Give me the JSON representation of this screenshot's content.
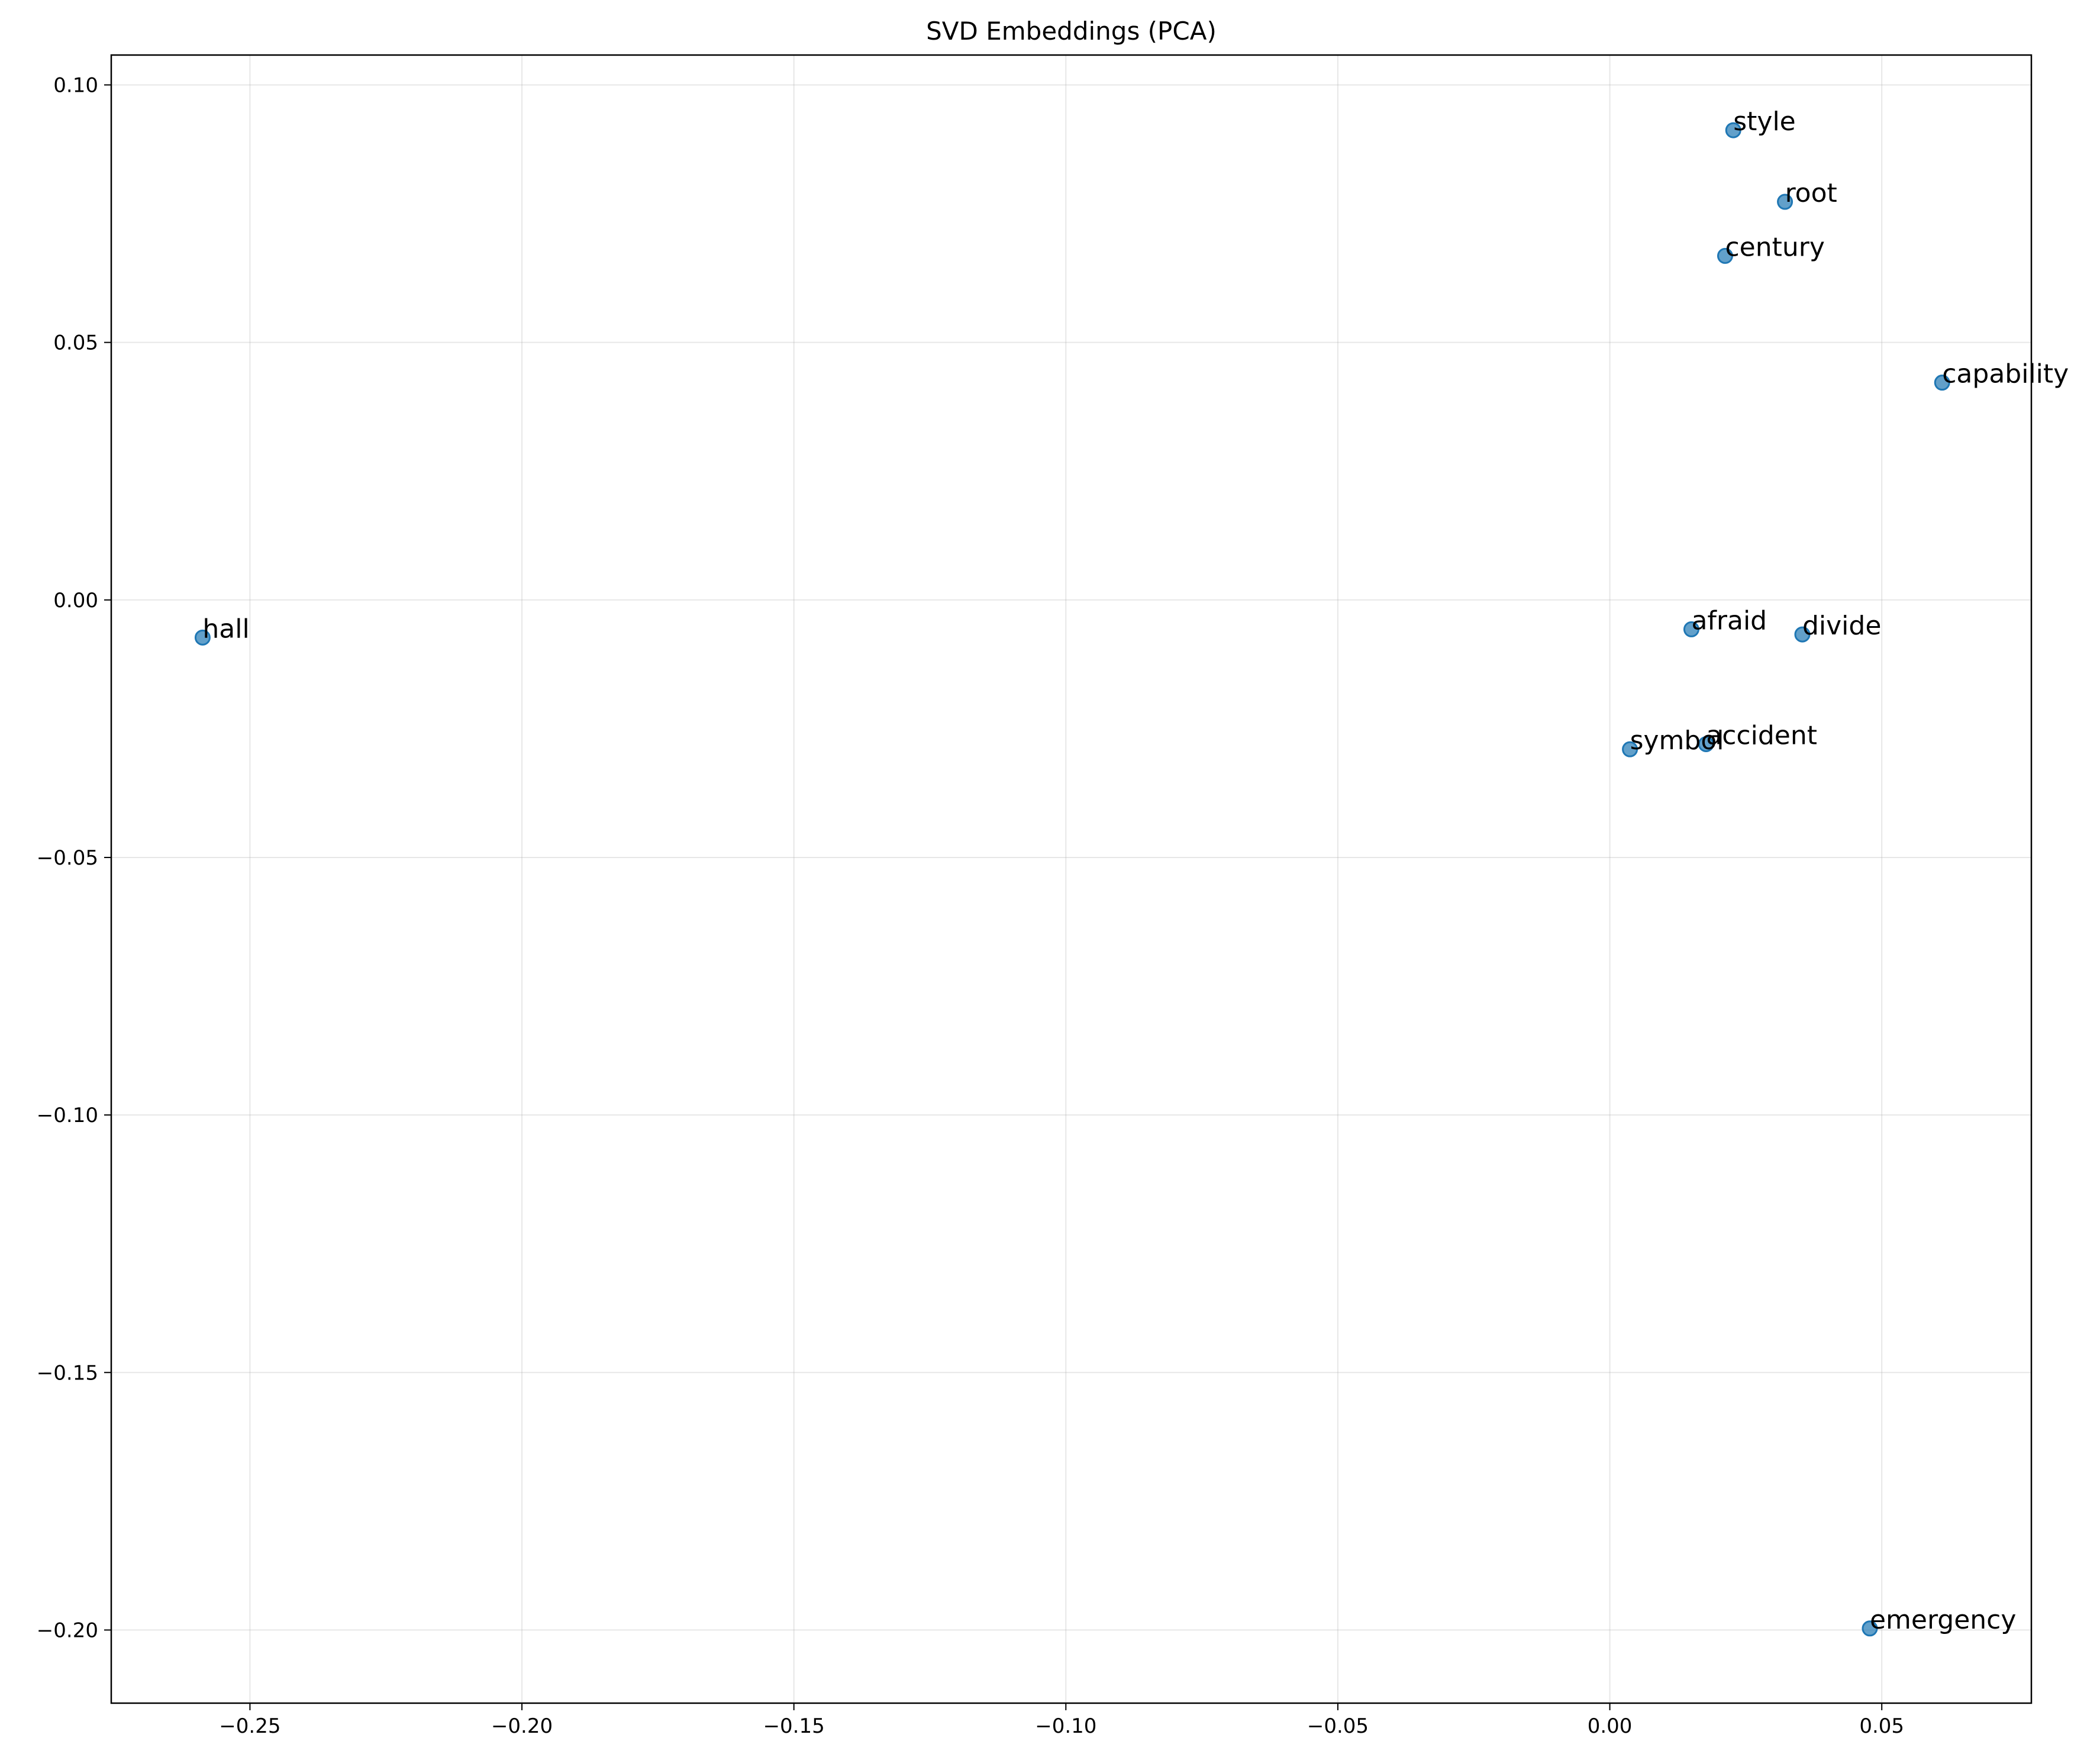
{
  "chart_data": {
    "type": "scatter",
    "title": "SVD Embeddings (PCA)",
    "xlabel": "",
    "ylabel": "",
    "xlim": [
      -0.2755,
      0.0775
    ],
    "ylim": [
      -0.2142,
      0.1058
    ],
    "xticks": [
      -0.25,
      -0.2,
      -0.15,
      -0.1,
      -0.05,
      0.0,
      0.05
    ],
    "xtick_labels": [
      "−0.25",
      "−0.20",
      "−0.15",
      "−0.10",
      "−0.05",
      "0.00",
      "0.05"
    ],
    "yticks": [
      0.1,
      0.05,
      0.0,
      -0.05,
      -0.1,
      -0.15,
      -0.2
    ],
    "ytick_labels": [
      "0.10",
      "0.05",
      "0.00",
      "−0.05",
      "−0.10",
      "−0.15",
      "−0.20"
    ],
    "grid": true,
    "point_color": "#1f77b4",
    "points": [
      {
        "label": "style",
        "x": 0.0227,
        "y": 0.0912
      },
      {
        "label": "root",
        "x": 0.0322,
        "y": 0.0773
      },
      {
        "label": "century",
        "x": 0.0212,
        "y": 0.0668
      },
      {
        "label": "capability",
        "x": 0.0611,
        "y": 0.0422
      },
      {
        "label": "hall",
        "x": -0.2587,
        "y": -0.0073
      },
      {
        "label": "afraid",
        "x": 0.015,
        "y": -0.0057
      },
      {
        "label": "divide",
        "x": 0.0354,
        "y": -0.0067
      },
      {
        "label": "accident",
        "x": 0.0177,
        "y": -0.028
      },
      {
        "label": "symbol",
        "x": 0.0037,
        "y": -0.029
      },
      {
        "label": "emergency",
        "x": 0.0478,
        "y": -0.1997
      }
    ]
  }
}
